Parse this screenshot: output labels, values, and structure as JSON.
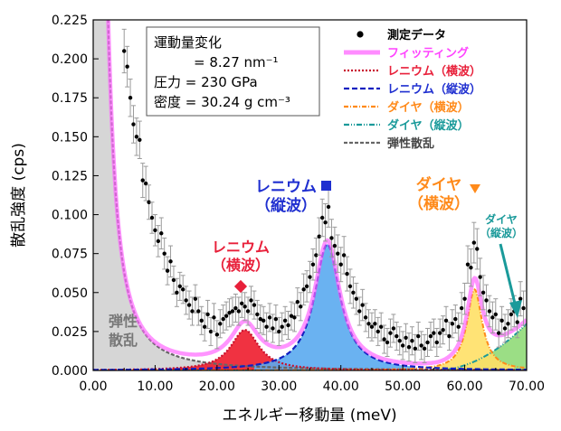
{
  "chart_data": {
    "type": "line",
    "xlabel": "エネルギー移動量 (meV)",
    "ylabel": "散乱強度 (cps)",
    "xlim": [
      0,
      70
    ],
    "ylim": [
      0,
      0.225
    ],
    "x_ticks": [
      "0.00",
      "10.00",
      "20.00",
      "30.00",
      "40.00",
      "50.00",
      "60.00",
      "70.00"
    ],
    "y_ticks": [
      "0.000",
      "0.025",
      "0.050",
      "0.075",
      "0.100",
      "0.125",
      "0.150",
      "0.175",
      "0.200",
      "0.225"
    ],
    "info_box": {
      "line1": "運動量変化",
      "line2": "= 8.27 nm⁻¹",
      "line3": "圧力 = 230 GPa",
      "line4": "密度 = 30.24 g cm⁻³"
    },
    "legend": [
      {
        "key": "measured",
        "label": "測定データ",
        "color": "#000000"
      },
      {
        "key": "fit",
        "label": "フィッティング",
        "color": "#ff66ff"
      },
      {
        "key": "re_ta",
        "label": "レニウム（横波）",
        "color": "#e8203a"
      },
      {
        "key": "re_la",
        "label": "レニウム（縦波）",
        "color": "#1f2fd0"
      },
      {
        "key": "dia_ta",
        "label": "ダイヤ（横波）",
        "color": "#ff8a1a"
      },
      {
        "key": "dia_la",
        "label": "ダイヤ（縦波）",
        "color": "#1a9a9a"
      },
      {
        "key": "elastic",
        "label": "弾性散乱",
        "color": "#666666"
      }
    ],
    "annotations": {
      "re_ta": {
        "line1": "レニウム",
        "line2": "（横波）",
        "color": "#e8203a"
      },
      "re_la": {
        "line1": "レニウム",
        "line2": "（縦波）",
        "color": "#1f2fd0"
      },
      "dia_ta": {
        "line1": "ダイヤ",
        "line2": "（横波）",
        "color": "#ff8a1a"
      },
      "dia_la": {
        "line1": "ダイヤ",
        "line2": "（縦波）",
        "color": "#1a9a9a"
      },
      "elastic": {
        "line1": "弾性",
        "line2": "散乱",
        "color": "#777777"
      }
    },
    "components": {
      "elastic": {
        "type": "lorentzian",
        "center": 0,
        "amp": 1.0,
        "hwhm": 1.3,
        "fill": "#d6d6d6"
      },
      "re_ta": {
        "type": "lorentzian",
        "center": 24.5,
        "amp": 0.026,
        "hwhm": 2.8,
        "fill": "#ee1c2c"
      },
      "re_la": {
        "type": "lorentzian",
        "center": 37.8,
        "amp": 0.081,
        "hwhm": 2.5,
        "fill": "#5aaaf0"
      },
      "dia_ta": {
        "type": "lorentzian",
        "center": 61.6,
        "amp": 0.052,
        "hwhm": 1.5,
        "fill": "#ffe066"
      },
      "dia_la": {
        "type": "rising",
        "start": 55,
        "end": 70,
        "maxval": 0.03,
        "fill": "#8ad870"
      }
    },
    "series_measured": {
      "name": "測定データ",
      "x": [
        5.0,
        5.5,
        6.0,
        6.5,
        7.0,
        7.5,
        8.0,
        8.5,
        9.0,
        9.5,
        10.0,
        10.5,
        11.0,
        11.5,
        12.0,
        12.5,
        13.0,
        13.5,
        14.0,
        14.5,
        15.0,
        15.5,
        16.0,
        16.5,
        17.0,
        17.5,
        18.0,
        18.5,
        19.0,
        19.5,
        20.0,
        20.5,
        21.0,
        21.5,
        22.0,
        22.5,
        23.0,
        23.5,
        24.0,
        24.5,
        25.0,
        25.5,
        26.0,
        26.5,
        27.0,
        27.5,
        28.0,
        28.5,
        29.0,
        29.5,
        30.0,
        30.5,
        31.0,
        31.5,
        32.0,
        32.5,
        33.0,
        33.5,
        34.0,
        34.5,
        35.0,
        35.5,
        36.0,
        36.5,
        37.0,
        37.5,
        38.0,
        38.5,
        39.0,
        39.5,
        40.0,
        40.5,
        41.0,
        41.5,
        42.0,
        42.5,
        43.0,
        43.5,
        44.0,
        44.5,
        45.0,
        45.5,
        46.0,
        46.5,
        47.0,
        47.5,
        48.0,
        48.5,
        49.0,
        49.5,
        50.0,
        50.5,
        51.0,
        51.5,
        52.0,
        52.5,
        53.0,
        53.5,
        54.0,
        54.5,
        55.0,
        55.5,
        56.0,
        56.5,
        57.0,
        57.5,
        58.0,
        58.5,
        59.0,
        59.5,
        60.0,
        60.5,
        61.0,
        61.5,
        62.0,
        62.5,
        63.0,
        63.5,
        64.0,
        64.5,
        65.0,
        65.5,
        66.0,
        66.5,
        67.0,
        67.5,
        68.0,
        68.5,
        69.0,
        69.5
      ],
      "y": [
        0.205,
        0.195,
        0.175,
        0.158,
        0.15,
        0.148,
        0.122,
        0.12,
        0.108,
        0.098,
        0.09,
        0.083,
        0.088,
        0.075,
        0.064,
        0.07,
        0.058,
        0.05,
        0.054,
        0.052,
        0.045,
        0.042,
        0.038,
        0.046,
        0.038,
        0.032,
        0.028,
        0.036,
        0.025,
        0.034,
        0.023,
        0.03,
        0.033,
        0.035,
        0.037,
        0.038,
        0.04,
        0.038,
        0.043,
        0.041,
        0.038,
        0.045,
        0.042,
        0.036,
        0.033,
        0.032,
        0.028,
        0.034,
        0.027,
        0.033,
        0.025,
        0.028,
        0.032,
        0.029,
        0.035,
        0.034,
        0.044,
        0.041,
        0.052,
        0.054,
        0.06,
        0.068,
        0.074,
        0.086,
        0.098,
        0.095,
        0.105,
        0.085,
        0.08,
        0.075,
        0.068,
        0.074,
        0.062,
        0.054,
        0.05,
        0.046,
        0.038,
        0.042,
        0.034,
        0.03,
        0.028,
        0.03,
        0.025,
        0.028,
        0.02,
        0.018,
        0.024,
        0.027,
        0.022,
        0.019,
        0.016,
        0.021,
        0.015,
        0.019,
        0.014,
        0.022,
        0.016,
        0.014,
        0.018,
        0.022,
        0.024,
        0.018,
        0.024,
        0.026,
        0.032,
        0.022,
        0.03,
        0.033,
        0.028,
        0.04,
        0.046,
        0.068,
        0.066,
        0.082,
        0.078,
        0.06,
        0.05,
        0.045,
        0.038,
        0.034,
        0.036,
        0.024,
        0.032,
        0.027,
        0.03,
        0.036,
        0.038,
        0.031,
        0.046,
        0.04
      ],
      "err": [
        0.014,
        0.013,
        0.012,
        0.012,
        0.012,
        0.012,
        0.011,
        0.011,
        0.011,
        0.01,
        0.01,
        0.01,
        0.01,
        0.01,
        0.009,
        0.01,
        0.009,
        0.009,
        0.009,
        0.009,
        0.009,
        0.009,
        0.009,
        0.009,
        0.009,
        0.009,
        0.009,
        0.009,
        0.009,
        0.009,
        0.009,
        0.009,
        0.009,
        0.009,
        0.009,
        0.009,
        0.009,
        0.009,
        0.009,
        0.009,
        0.009,
        0.009,
        0.009,
        0.009,
        0.009,
        0.009,
        0.009,
        0.009,
        0.009,
        0.009,
        0.009,
        0.009,
        0.009,
        0.009,
        0.009,
        0.009,
        0.009,
        0.009,
        0.01,
        0.01,
        0.01,
        0.01,
        0.011,
        0.012,
        0.012,
        0.012,
        0.013,
        0.012,
        0.012,
        0.012,
        0.011,
        0.012,
        0.011,
        0.011,
        0.01,
        0.01,
        0.009,
        0.01,
        0.009,
        0.009,
        0.009,
        0.009,
        0.009,
        0.009,
        0.009,
        0.009,
        0.009,
        0.009,
        0.009,
        0.009,
        0.009,
        0.009,
        0.009,
        0.009,
        0.009,
        0.009,
        0.009,
        0.009,
        0.009,
        0.009,
        0.009,
        0.009,
        0.009,
        0.009,
        0.009,
        0.009,
        0.009,
        0.009,
        0.009,
        0.01,
        0.01,
        0.012,
        0.012,
        0.013,
        0.013,
        0.012,
        0.011,
        0.01,
        0.01,
        0.01,
        0.01,
        0.009,
        0.009,
        0.009,
        0.009,
        0.01,
        0.01,
        0.01,
        0.011,
        0.011
      ]
    }
  }
}
